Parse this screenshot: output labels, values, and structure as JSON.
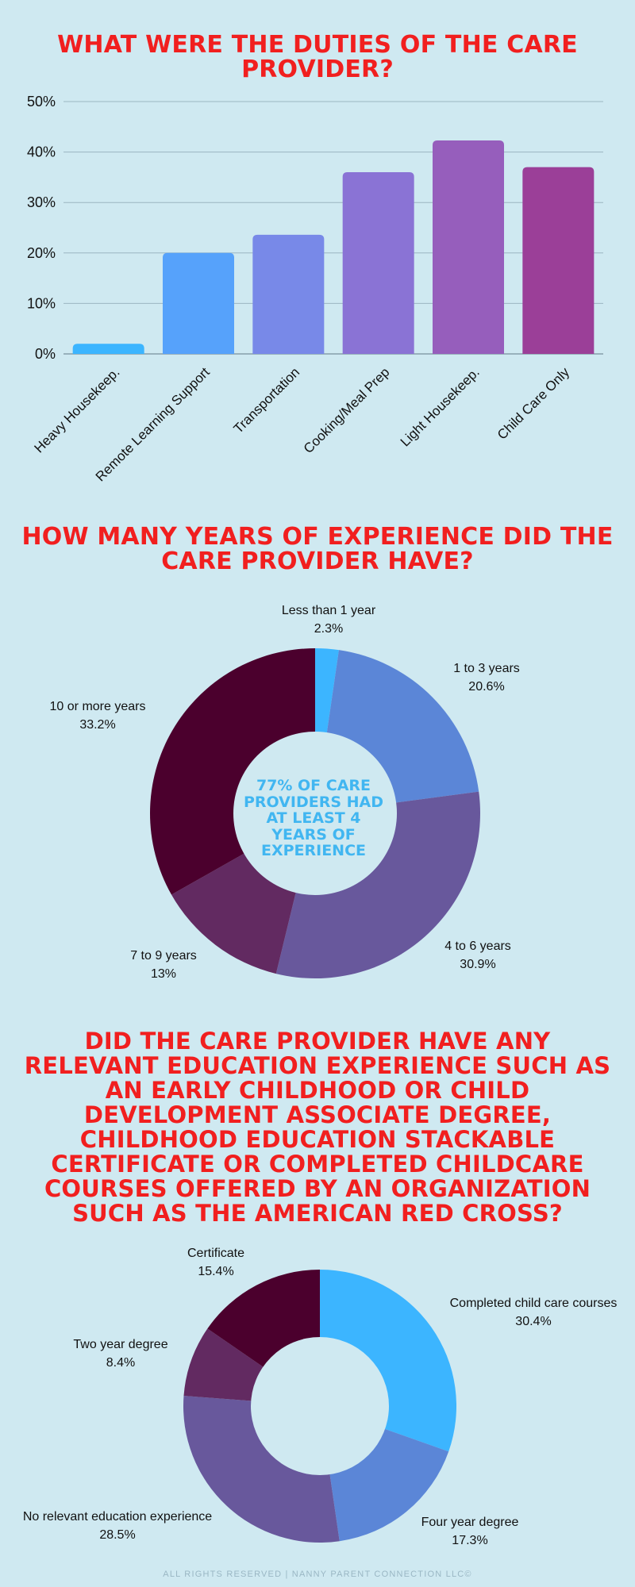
{
  "titles": {
    "duties": "WHAT WERE THE DUTIES OF THE CARE PROVIDER?",
    "experience": "HOW MANY YEARS OF EXPERIENCE DID THE CARE PROVIDER HAVE?",
    "education": "DID THE CARE PROVIDER HAVE ANY RELEVANT EDUCATION EXPERIENCE SUCH AS AN EARLY CHILDHOOD OR CHILD DEVELOPMENT ASSOCIATE DEGREE, CHILDHOOD EDUCATION STACKABLE CERTIFICATE OR COMPLETED CHILDCARE COURSES OFFERED BY AN ORGANIZATION SUCH AS THE AMERICAN RED CROSS?"
  },
  "experience_center_note": "77% OF CARE PROVIDERS HAD AT LEAST 4 YEARS OF EXPERIENCE",
  "footer": "ALL RIGHTS RESERVED | NANNY PARENT CONNECTION LLC©",
  "colors": {
    "background": "#cfe9f1",
    "title": "#f11f1f",
    "accent_blue": "#41b6f1"
  },
  "chart_data": [
    {
      "type": "bar",
      "title": "WHAT WERE THE DUTIES OF THE CARE PROVIDER?",
      "categories": [
        "Heavy Housekeep.",
        "Remote Learning Support",
        "Transportation",
        "Cooking/Meal Prep",
        "Light Housekeep.",
        "Child Care Only"
      ],
      "values": [
        2,
        20,
        23.6,
        36,
        42.3,
        37
      ],
      "colors": [
        "#3cb5ff",
        "#56a2fb",
        "#7889e8",
        "#8a73d5",
        "#965ebc",
        "#9b3f98"
      ],
      "ylim": [
        0,
        50
      ],
      "yticks": [
        0,
        10,
        20,
        30,
        40,
        50
      ],
      "ytick_labels": [
        "0%",
        "10%",
        "20%",
        "30%",
        "40%",
        "50%"
      ],
      "grid": true,
      "xlabel": "",
      "ylabel": ""
    },
    {
      "type": "pie",
      "title": "HOW MANY YEARS OF EXPERIENCE DID THE CARE PROVIDER HAVE?",
      "donut": true,
      "labels": [
        "Less than 1 year",
        "1 to 3 years",
        "4 to 6 years",
        "7 to 9 years",
        "10 or more years"
      ],
      "values": [
        2.3,
        20.6,
        30.9,
        13,
        33.2
      ],
      "value_labels": [
        "2.3%",
        "20.6%",
        "30.9%",
        "13%",
        "33.2%"
      ],
      "colors": [
        "#3cb5ff",
        "#5b86d7",
        "#68589c",
        "#622a61",
        "#4b002d"
      ]
    },
    {
      "type": "pie",
      "title": "DID THE CARE PROVIDER HAVE ANY RELEVANT EDUCATION EXPERIENCE?",
      "donut": true,
      "labels": [
        "Completed child care courses",
        "Four year degree",
        "No relevant education experience",
        "Two year degree",
        "Certificate"
      ],
      "values": [
        30.4,
        17.3,
        28.5,
        8.4,
        15.4
      ],
      "value_labels": [
        "30.4%",
        "17.3%",
        "28.5%",
        "8.4%",
        "15.4%"
      ],
      "colors": [
        "#3cb5ff",
        "#5b86d7",
        "#68589c",
        "#622a61",
        "#4b002d"
      ]
    }
  ]
}
